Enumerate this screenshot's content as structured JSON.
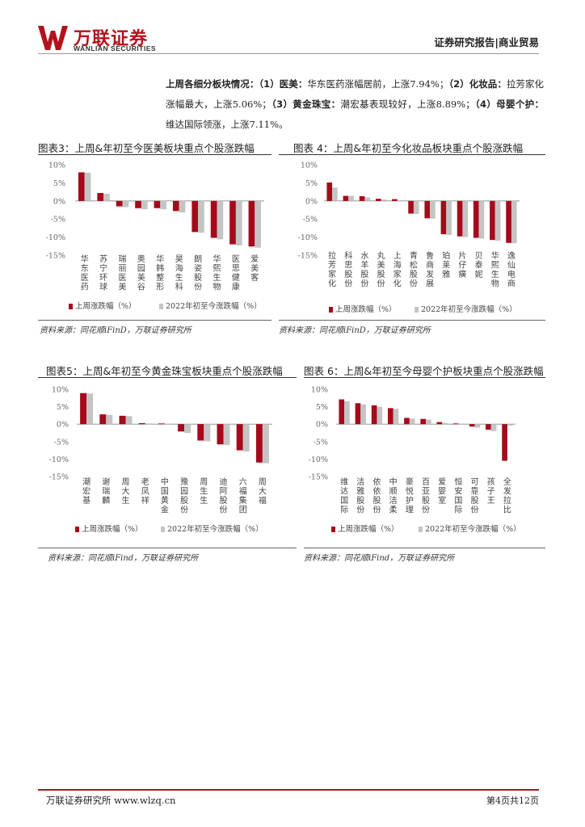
{
  "header": {
    "logo_cn": "万联证券",
    "logo_en": "WANLIAN SECURITIES",
    "report_type": "证券研究报告|商业贸易"
  },
  "intro": {
    "lead": "上周各细分板块情况：",
    "s1_tag": "（1）医美：",
    "s1_text": "华东医药涨幅居前，上涨7.94%；",
    "s2_tag": "（2）化妆品：",
    "s2_text": "拉芳家化涨幅最大，上涨5.06%；",
    "s3_tag": "（3）黄金珠宝：",
    "s3_text": "潮宏基表现较好，上涨8.89%；",
    "s4_tag": "（4）母婴个护：",
    "s4_text": "维达国际领涨，上涨7.11%。"
  },
  "colors": {
    "week": "#a50a1b",
    "ytd": "#c4c4c4",
    "axis": "#888888",
    "tick": "#666666",
    "brand": "#b3121c"
  },
  "charts": [
    {
      "title": "图表3：上周&年初至今医美板块重点个股涨跌幅",
      "source": "资料来源：同花顺iFinD，万联证券研究所",
      "chart_data": {
        "type": "bar",
        "categories": [
          "华东医药",
          "苏宁环球",
          "瑞丽医美",
          "奥园美谷",
          "华韩整形",
          "昊海生科",
          "朗姿股份",
          "华熙生物",
          "医思健康",
          "爱美客"
        ],
        "series": [
          {
            "name": "上周涨跌幅（%）",
            "values": [
              7.9,
              2.2,
              -1.5,
              -2.0,
              -2.0,
              -2.8,
              -8.6,
              -10.2,
              -12.0,
              -12.6
            ]
          },
          {
            "name": "2022年初至今涨跌幅（%）",
            "values": [
              7.8,
              2.0,
              -1.7,
              -2.3,
              -2.3,
              -3.2,
              -8.8,
              -10.6,
              -12.3,
              -12.9
            ]
          }
        ],
        "yticks": [
          "10%",
          "5%",
          "0%",
          "-5%",
          "-10%",
          "-15%"
        ],
        "ylim": [
          -15,
          10
        ]
      }
    },
    {
      "title": "图表 4：上周&年初至今化妆品板块重点个股涨跌幅",
      "source": "资料来源：同花顺iFinD，万联证券研究所",
      "chart_data": {
        "type": "bar",
        "categories": [
          "拉芳家化",
          "科思股份",
          "水羊股份",
          "丸美股份",
          "上海家化",
          "青松股份",
          "鲁商发展",
          "珀莱雅",
          "片仔癀",
          "贝泰妮",
          "华熙生物",
          "逸仙电商"
        ],
        "series": [
          {
            "name": "上周涨跌幅（%）",
            "values": [
              5.1,
              1.4,
              1.3,
              0.6,
              0.5,
              -3.5,
              -4.8,
              -9.2,
              -9.8,
              -10.2,
              -10.8,
              -11.6
            ]
          },
          {
            "name": "2022年初至今涨跌幅（%）",
            "values": [
              3.7,
              1.4,
              1.0,
              0.4,
              0.2,
              -3.6,
              -4.9,
              -9.4,
              -10.0,
              -10.4,
              -11.0,
              -11.7
            ]
          }
        ],
        "yticks": [
          "10%",
          "5%",
          "0%",
          "-5%",
          "-10%",
          "-15%"
        ],
        "ylim": [
          -15,
          10
        ]
      }
    },
    {
      "title": "图表5：上周&年初至今黄金珠宝板块重点个股涨跌幅",
      "source": "资料来源：同花顺iFind，万联证券研究所",
      "chart_data": {
        "type": "bar",
        "categories": [
          "潮宏基",
          "谢瑞麟",
          "周大生",
          "老凤祥",
          "中国黄金",
          "豫园股份",
          "周生生",
          "迪阿股份",
          "六福集团",
          "周大福"
        ],
        "series": [
          {
            "name": "上周涨跌幅（%）",
            "values": [
              8.9,
              2.8,
              2.4,
              0.3,
              0.2,
              -2.1,
              -4.7,
              -5.8,
              -7.5,
              -11.0
            ]
          },
          {
            "name": "2022年初至今涨跌幅（%）",
            "values": [
              8.8,
              2.7,
              2.3,
              0.2,
              0.0,
              -2.5,
              -4.9,
              -6.0,
              -7.8,
              -11.2
            ]
          }
        ],
        "yticks": [
          "10%",
          "5%",
          "0%",
          "-5%",
          "-10%",
          "-15%"
        ],
        "ylim": [
          -15,
          10
        ]
      }
    },
    {
      "title": "图表 6：上周&年初至今母婴个护板块重点个股涨跌幅",
      "source": "资料来源：同花顺iFind，万联证券研究所",
      "chart_data": {
        "type": "bar",
        "categories": [
          "维达国际",
          "洁雅股份",
          "依依股份",
          "中顺洁柔",
          "豪悦护理",
          "百亚股份",
          "爱婴室",
          "恒安国际",
          "可靠股份",
          "孩子王",
          "全发拉比"
        ],
        "series": [
          {
            "name": "上周涨跌幅（%）",
            "values": [
              7.1,
              6.0,
              5.4,
              4.6,
              1.8,
              1.5,
              0.6,
              0.2,
              -0.7,
              -1.6,
              -10.5
            ]
          },
          {
            "name": "2022年初至今涨跌幅（%）",
            "values": [
              6.6,
              5.7,
              5.0,
              4.4,
              1.6,
              1.3,
              0.4,
              0.0,
              -1.0,
              -2.0,
              -0.4
            ]
          }
        ],
        "yticks": [
          "10%",
          "5%",
          "0%",
          "-5%",
          "-10%",
          "-15%"
        ],
        "ylim": [
          -15,
          10
        ]
      }
    }
  ],
  "footer": {
    "left": "万联证券研究所 www.wlzq.cn",
    "right": "第4页共12页"
  }
}
